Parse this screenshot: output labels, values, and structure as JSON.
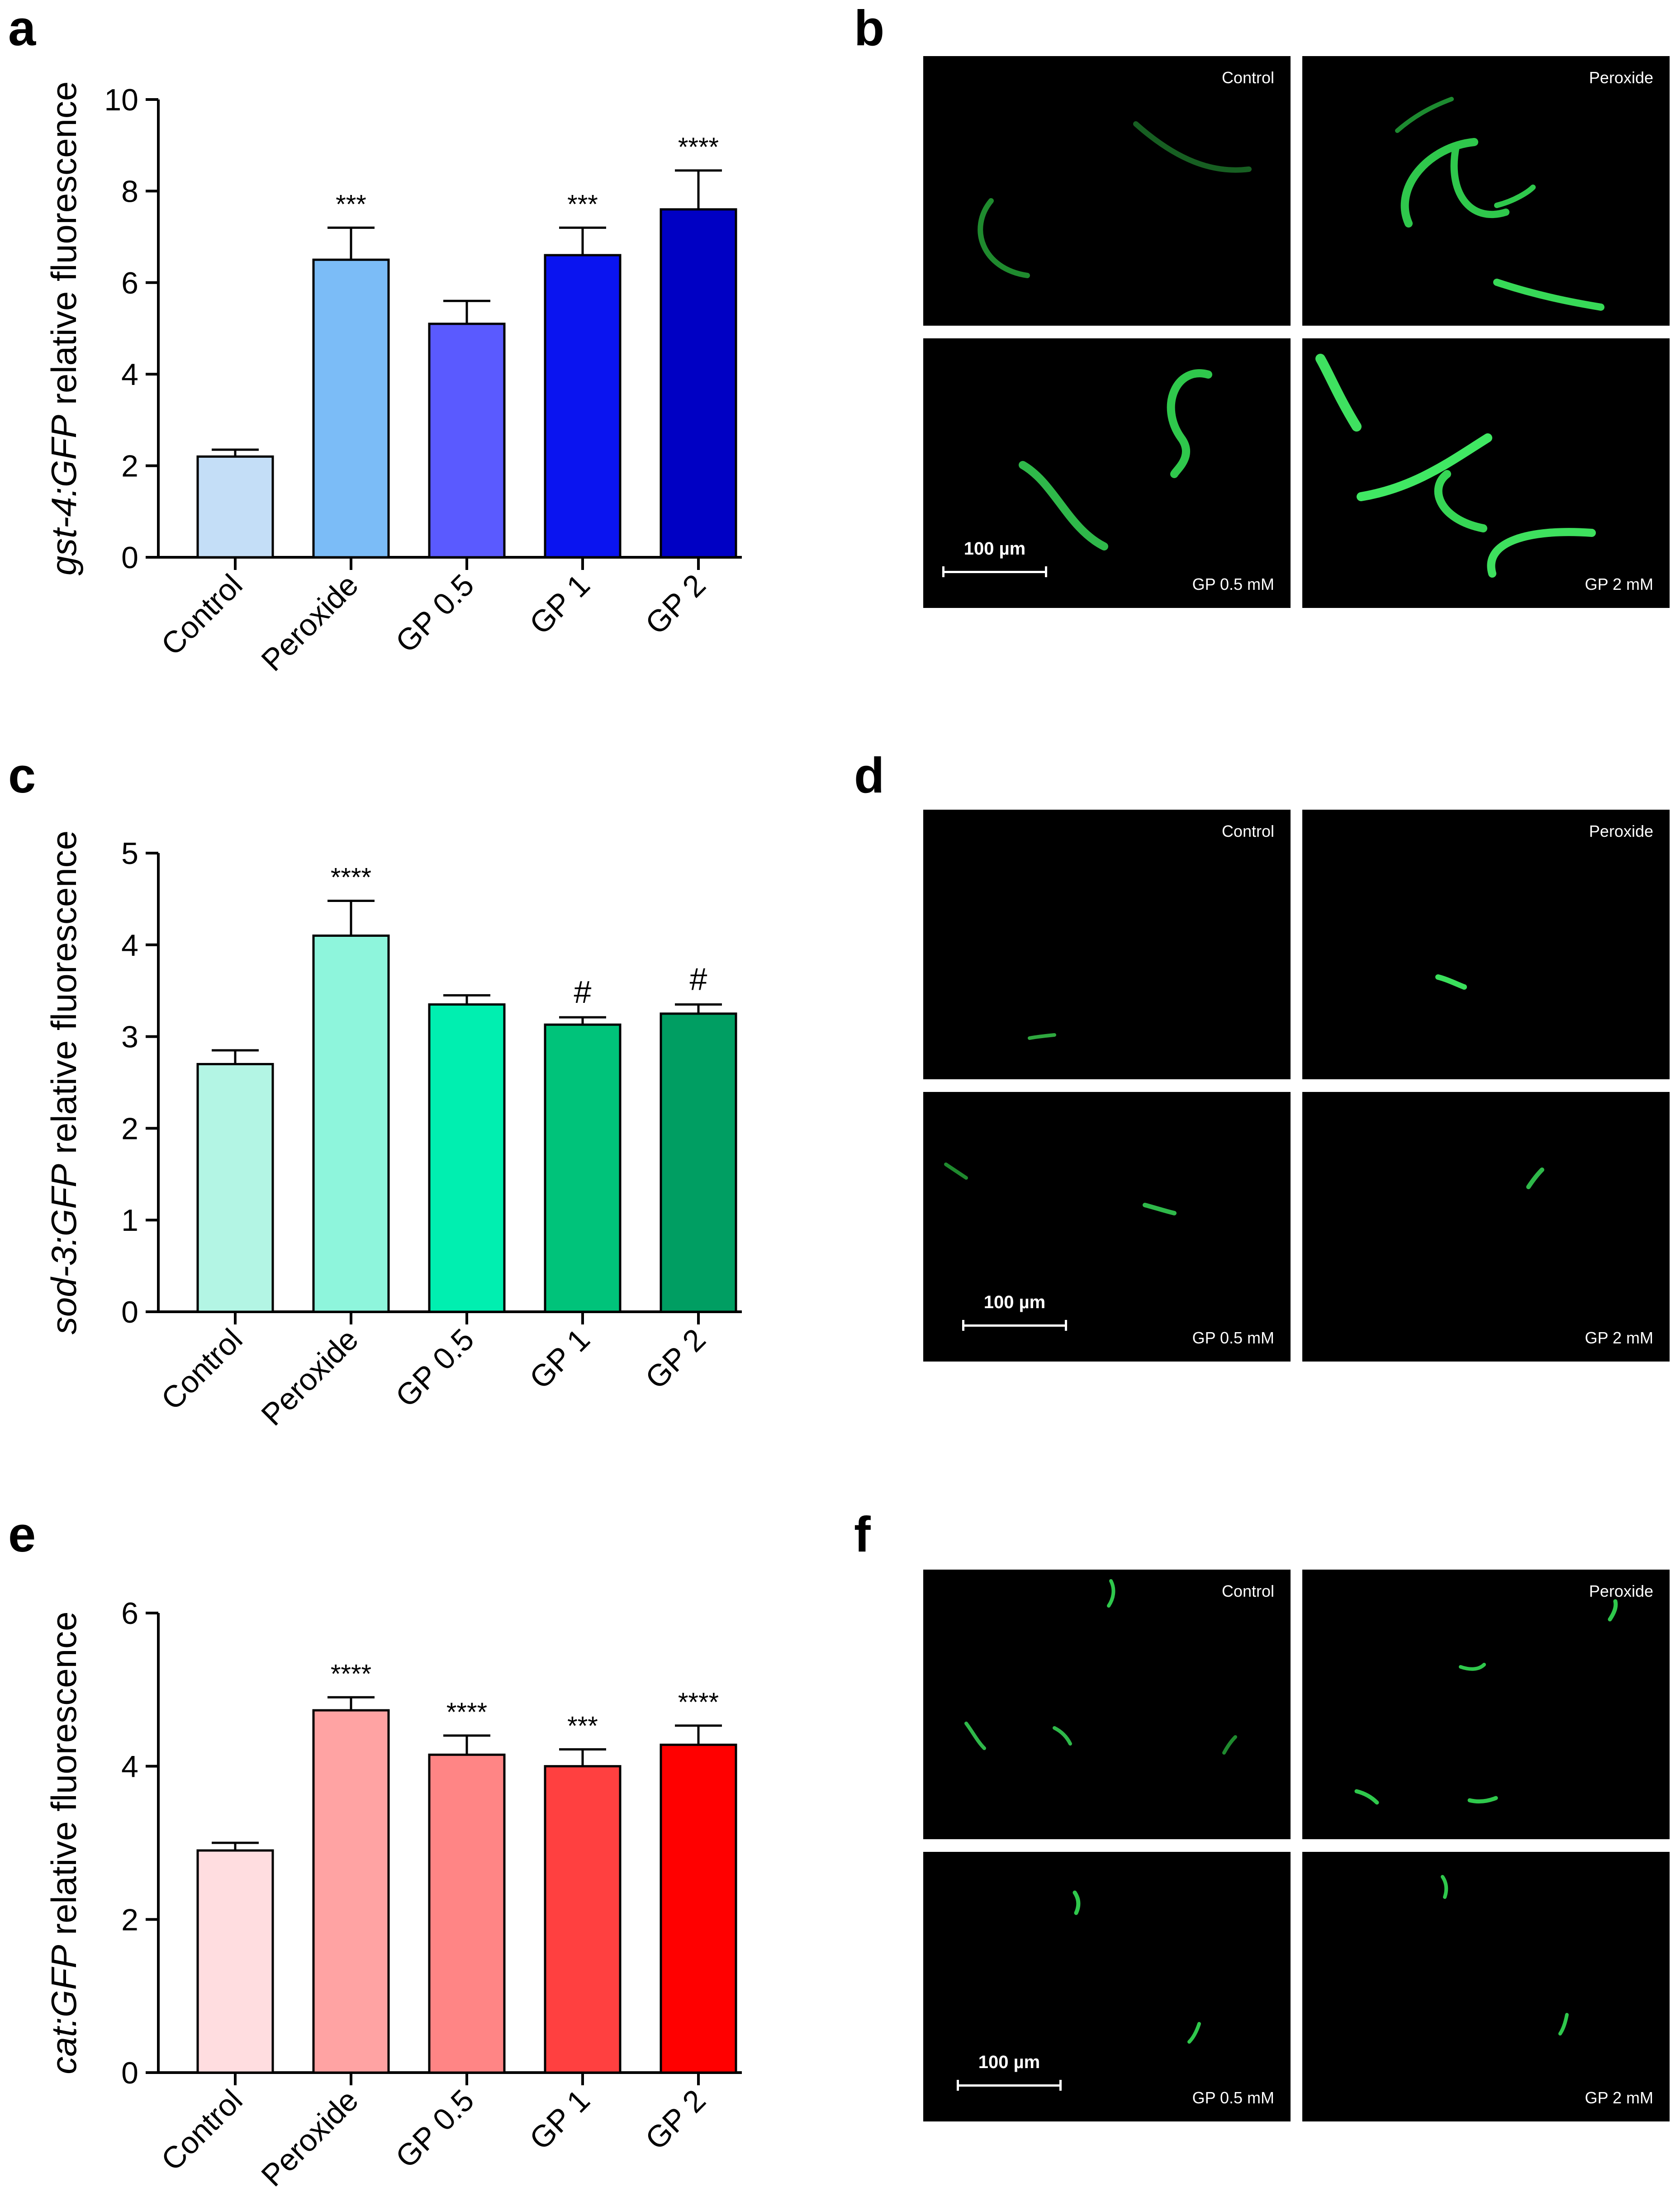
{
  "panels": {
    "a": "a",
    "b": "b",
    "c": "c",
    "d": "d",
    "e": "e",
    "f": "f"
  },
  "chart_data": [
    {
      "type": "bar",
      "categories": [
        "Control",
        "Peroxide",
        "GP 0.5",
        "GP 1",
        "GP 2"
      ],
      "values": [
        2.2,
        6.5,
        5.1,
        6.6,
        7.6
      ],
      "errors": [
        0.15,
        0.7,
        0.5,
        0.6,
        0.85
      ],
      "annotations": [
        "",
        "***",
        "",
        "***",
        "****"
      ],
      "ylabel_italic": "gst-4:GFP",
      "ylabel_rest": " relative fluorescence",
      "ylim": [
        0,
        10
      ],
      "yticks": [
        0,
        2,
        4,
        6,
        8,
        10
      ],
      "colors": [
        "#c4def7",
        "#7bbcf7",
        "#5a5aff",
        "#0a14f0",
        "#0000c4"
      ]
    },
    {
      "type": "bar",
      "categories": [
        "Control",
        "Peroxide",
        "GP 0.5",
        "GP 1",
        "GP 2"
      ],
      "values": [
        2.7,
        4.1,
        3.35,
        3.13,
        3.25
      ],
      "errors": [
        0.15,
        0.38,
        0.1,
        0.08,
        0.1
      ],
      "annotations": [
        "",
        "****",
        "",
        "#",
        "#"
      ],
      "ylabel_italic": "sod-3:GFP",
      "ylabel_rest": " relative fluorescence",
      "ylim": [
        0,
        5
      ],
      "yticks": [
        0,
        1,
        2,
        3,
        4,
        5
      ],
      "colors": [
        "#b3f5e4",
        "#8ef5dc",
        "#00efb0",
        "#00c37a",
        "#009e62"
      ]
    },
    {
      "type": "bar",
      "categories": [
        "Control",
        "Peroxide",
        "GP 0.5",
        "GP 1",
        "GP 2"
      ],
      "values": [
        2.9,
        4.73,
        4.15,
        4.0,
        4.28
      ],
      "errors": [
        0.1,
        0.17,
        0.25,
        0.22,
        0.25
      ],
      "annotations": [
        "",
        "****",
        "****",
        "***",
        "****"
      ],
      "ylabel_italic": "cat:GFP",
      "ylabel_rest": " relative fluorescence",
      "ylim": [
        0,
        6
      ],
      "yticks": [
        0,
        2,
        4,
        6
      ],
      "colors": [
        "#ffdde0",
        "#ffa3a3",
        "#ff8585",
        "#ff4040",
        "#ff0000"
      ]
    }
  ],
  "micrographs": {
    "b": {
      "top_left": "Control",
      "top_right": "Peroxide",
      "bottom_left": "GP 0.5 mM",
      "bottom_right": "GP 2 mM",
      "scale": "100 µm"
    },
    "d": {
      "top_left": "Control",
      "top_right": "Peroxide",
      "bottom_left": "GP 0.5 mM",
      "bottom_right": "GP 2 mM",
      "scale": "100 µm"
    },
    "f": {
      "top_left": "Control",
      "top_right": "Peroxide",
      "bottom_left": "GP 0.5 mM",
      "bottom_right": "GP 2 mM",
      "scale": "100 µm"
    }
  }
}
